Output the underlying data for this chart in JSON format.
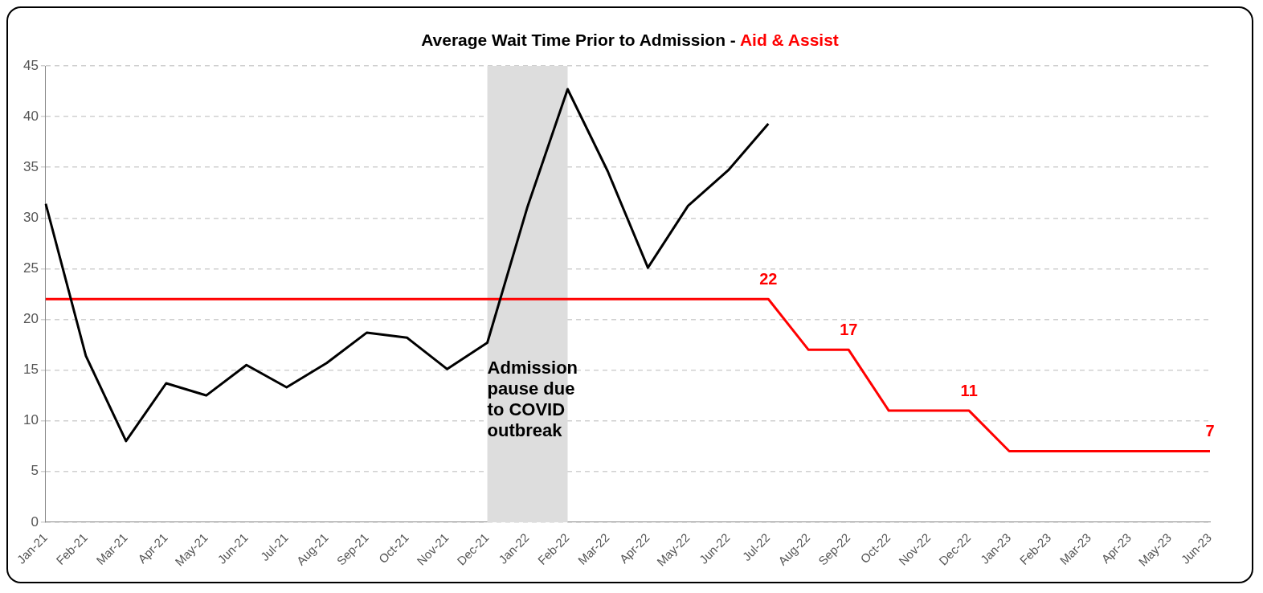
{
  "chart_data": {
    "type": "line",
    "title": "Average Wait Time Prior to Admission -",
    "subtitle": "Aid & Assist",
    "categories": [
      "Jan-21",
      "Feb-21",
      "Mar-21",
      "Apr-21",
      "May-21",
      "Jun-21",
      "Jul-21",
      "Aug-21",
      "Sep-21",
      "Oct-21",
      "Nov-21",
      "Dec-21",
      "Jan-22",
      "Feb-22",
      "Mar-22",
      "Apr-22",
      "May-22",
      "Jun-22",
      "Jul-22",
      "Aug-22",
      "Sep-22",
      "Oct-22",
      "Nov-22",
      "Dec-22",
      "Jan-23",
      "Feb-23",
      "Mar-23",
      "Apr-23",
      "May-23",
      "Jun-23"
    ],
    "series": [
      {
        "color": "#000000",
        "values": [
          31.4,
          16.4,
          8.0,
          13.7,
          12.5,
          15.5,
          13.3,
          15.7,
          18.7,
          18.2,
          15.1,
          17.7,
          31.1,
          42.7,
          34.6,
          25.1,
          31.2,
          34.7,
          39.3,
          null,
          null,
          null,
          null,
          null,
          null,
          null,
          null,
          null,
          null,
          null
        ]
      },
      {
        "color": "#ff0000",
        "values": [
          22,
          22,
          22,
          22,
          22,
          22,
          22,
          22,
          22,
          22,
          22,
          22,
          22,
          22,
          22,
          22,
          22,
          22,
          22,
          17,
          17,
          11,
          11,
          11,
          7,
          7,
          7,
          7,
          7,
          7
        ],
        "value_labels": [
          null,
          null,
          null,
          null,
          null,
          null,
          null,
          null,
          null,
          null,
          null,
          null,
          null,
          null,
          null,
          null,
          null,
          null,
          "22",
          null,
          "17",
          null,
          null,
          "11",
          null,
          null,
          null,
          null,
          null,
          "7"
        ]
      }
    ],
    "ylim": [
      0,
      45
    ],
    "yticks": [
      0,
      5,
      10,
      15,
      20,
      25,
      30,
      35,
      40,
      45
    ],
    "grid": "y",
    "legend": false,
    "marker": "none",
    "line_style": "solid",
    "bands": [
      {
        "axis": "x",
        "from": "Dec-21",
        "to": "Feb-22",
        "label": "Admission pause due to COVID outbreak",
        "color": "#dddddd"
      }
    ]
  }
}
